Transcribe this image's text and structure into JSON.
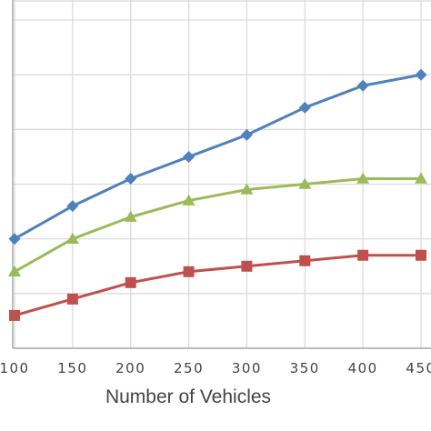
{
  "chart_data": {
    "type": "line",
    "title": "",
    "xlabel": "Number of Vehicles",
    "ylabel": "",
    "x": [
      100,
      150,
      200,
      250,
      300,
      350,
      400,
      450
    ],
    "x_tick_labels": [
      "100",
      "150",
      "200",
      "250",
      "300",
      "350",
      "400",
      "450"
    ],
    "xlim": [
      100,
      450
    ],
    "ylim": [
      0,
      6.5
    ],
    "y_gridlines": [
      1,
      2,
      3,
      4,
      5,
      6
    ],
    "grid": true,
    "legend": "none",
    "series": [
      {
        "values": [
          2.0,
          2.6,
          3.1,
          3.5,
          3.9,
          4.4,
          4.8,
          5.0
        ],
        "color": "#4F81BD",
        "marker": "diamond"
      },
      {
        "values": [
          1.4,
          2.0,
          2.4,
          2.7,
          2.9,
          3.0,
          3.1,
          3.1
        ],
        "color": "#9BBB59",
        "marker": "triangle"
      },
      {
        "values": [
          0.6,
          0.9,
          1.2,
          1.4,
          1.5,
          1.6,
          1.7,
          1.7
        ],
        "color": "#C0504D",
        "marker": "square"
      }
    ]
  }
}
